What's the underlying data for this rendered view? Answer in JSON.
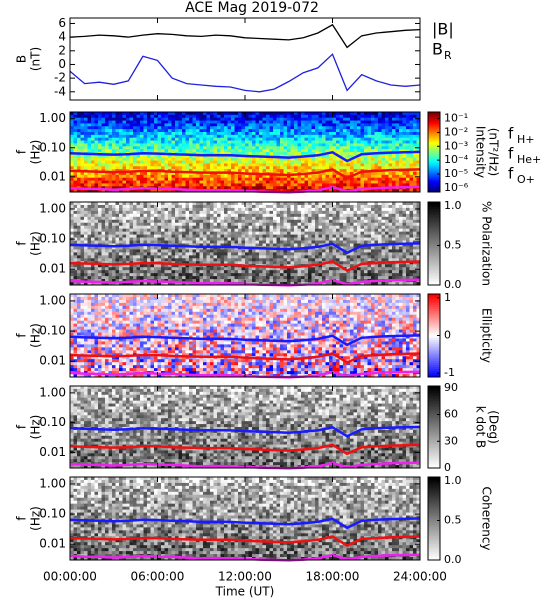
{
  "chart_data": [
    {
      "type": "line",
      "title": "ACE Mag 2019-072",
      "y_label": "B",
      "y_unit": "(nT)",
      "xlim": [
        0,
        24
      ],
      "x": [
        0,
        1,
        2,
        3,
        4,
        5,
        6,
        7,
        8,
        9,
        10,
        11,
        12,
        13,
        14,
        15,
        16,
        17,
        18,
        19,
        20,
        21,
        22,
        23,
        24
      ],
      "ylim": [
        -5.2,
        6.8
      ],
      "yticks": [
        6,
        4,
        2,
        0,
        -2,
        -4
      ],
      "series": [
        {
          "name": "|B|",
          "color": "#000000",
          "values": [
            4.0,
            4.1,
            4.3,
            4.2,
            4.0,
            4.3,
            4.5,
            4.4,
            4.2,
            4.1,
            4.3,
            4.2,
            3.9,
            3.8,
            3.7,
            3.6,
            3.9,
            4.6,
            5.8,
            2.5,
            4.2,
            4.6,
            4.8,
            5.0,
            5.1
          ]
        },
        {
          "name": "B",
          "subscript": "R",
          "color": "#2020e0",
          "values": [
            -1.0,
            -2.8,
            -2.6,
            -2.9,
            -2.4,
            1.2,
            0.6,
            -2.0,
            -2.8,
            -3.0,
            -3.2,
            -3.3,
            -3.8,
            -4.0,
            -3.6,
            -2.5,
            -1.2,
            -0.5,
            1.5,
            -3.8,
            -1.5,
            -2.4,
            -3.0,
            -3.2,
            -3.0
          ]
        }
      ]
    },
    {
      "type": "spectrogram",
      "y_label": "f",
      "y_unit": "(Hz)",
      "xlim": [
        0,
        24
      ],
      "ylim": [
        0.003,
        1.7
      ],
      "log_y": true,
      "yticks": [
        {
          "value": 1,
          "label": "1.00"
        },
        {
          "value": 0.1,
          "label": "0.10"
        },
        0.01
      ],
      "colormap": "jet",
      "colorbar_label": "Intensity",
      "colorbar_unit": "(nT²/Hz)",
      "clim": [
        5e-07,
        0.3
      ],
      "log_c": true,
      "cticks": [
        {
          "value": 0.1,
          "label": "10⁻¹"
        },
        {
          "value": 0.01,
          "label": "10⁻²"
        },
        {
          "value": 0.001,
          "label": "10⁻³"
        },
        {
          "value": 0.0001,
          "label": "10⁻⁴"
        },
        {
          "value": 1e-05,
          "label": "10⁻⁵"
        },
        {
          "value": 1e-06,
          "label": "10⁻⁶"
        }
      ],
      "x": [
        0,
        1,
        2,
        3,
        4,
        5,
        6,
        7,
        8,
        9,
        10,
        11,
        12,
        13,
        14,
        15,
        16,
        17,
        18,
        19,
        20,
        21,
        22,
        23,
        24
      ],
      "series": [
        {
          "name": "f",
          "subscript": "H+",
          "color": "#1a1aff",
          "values": [
            0.065,
            0.062,
            0.06,
            0.058,
            0.06,
            0.065,
            0.063,
            0.06,
            0.058,
            0.055,
            0.056,
            0.055,
            0.052,
            0.05,
            0.048,
            0.046,
            0.05,
            0.055,
            0.07,
            0.035,
            0.06,
            0.065,
            0.068,
            0.07,
            0.072
          ]
        },
        {
          "name": "f",
          "subscript": "He+",
          "color": "#ee1111",
          "values": [
            0.016,
            0.0155,
            0.015,
            0.0145,
            0.015,
            0.016,
            0.016,
            0.015,
            0.0145,
            0.014,
            0.014,
            0.014,
            0.013,
            0.0125,
            0.012,
            0.0115,
            0.0125,
            0.014,
            0.018,
            0.009,
            0.015,
            0.016,
            0.017,
            0.0175,
            0.018
          ]
        },
        {
          "name": "f",
          "subscript": "O+",
          "color": "#ee22ee",
          "values": [
            0.0041,
            0.0039,
            0.0038,
            0.0036,
            0.0038,
            0.0041,
            0.0039,
            0.0038,
            0.0036,
            0.0034,
            0.0035,
            0.0034,
            0.0033,
            0.0031,
            0.003,
            0.0029,
            0.0031,
            0.0034,
            0.0044,
            0.0032,
            0.0038,
            0.0041,
            0.0043,
            0.0044,
            0.0045
          ]
        }
      ]
    },
    {
      "type": "spectrogram",
      "y_label": "f",
      "y_unit": "(Hz)",
      "xlim": [
        0,
        24
      ],
      "ylim": [
        0.003,
        1.7
      ],
      "log_y": true,
      "yticks": [
        {
          "value": 1,
          "label": "1.00"
        },
        {
          "value": 0.1,
          "label": "0.10"
        },
        0.01
      ],
      "colormap": "gray",
      "colorbar_label": "% Polarization",
      "clim": [
        0,
        1.05
      ],
      "cticks": [
        {
          "value": 0,
          "label": "0.0"
        },
        0.5,
        {
          "value": 1,
          "label": "1.0"
        }
      ]
    },
    {
      "type": "spectrogram",
      "y_label": "f",
      "y_unit": "(Hz)",
      "xlim": [
        0,
        24
      ],
      "ylim": [
        0.003,
        1.7
      ],
      "log_y": true,
      "yticks": [
        {
          "value": 1,
          "label": "1.00"
        },
        {
          "value": 0.1,
          "label": "0.10"
        },
        0.01
      ],
      "colormap": "bwr",
      "colorbar_label": "Ellipticity",
      "clim": [
        -1.1,
        1.1
      ],
      "cticks": [
        -1,
        0,
        1
      ]
    },
    {
      "type": "spectrogram",
      "y_label": "f",
      "y_unit": "(Hz)",
      "xlim": [
        0,
        24
      ],
      "ylim": [
        0.003,
        1.7
      ],
      "log_y": true,
      "yticks": [
        {
          "value": 1,
          "label": "1.00"
        },
        {
          "value": 0.1,
          "label": "0.10"
        },
        0.01
      ],
      "colormap": "gray",
      "colorbar_label": "k dot B",
      "colorbar_unit": "(Deg)",
      "clim": [
        0,
        92
      ],
      "cticks": [
        0,
        30,
        60,
        90
      ]
    },
    {
      "type": "spectrogram",
      "y_label": "f",
      "y_unit": "(Hz)",
      "xlim": [
        0,
        24
      ],
      "ylim": [
        0.003,
        1.7
      ],
      "log_y": true,
      "yticks": [
        {
          "value": 1,
          "label": "1.00"
        },
        {
          "value": 0.1,
          "label": "0.10"
        },
        0.01
      ],
      "colormap": "gray",
      "colorbar_label": "Coherency",
      "clim": [
        0,
        1.05
      ],
      "cticks": [
        {
          "value": 0,
          "label": "0.0"
        },
        0.5,
        {
          "value": 1,
          "label": "1.0"
        }
      ],
      "x_label": "Time (UT)",
      "xticks": [
        {
          "value": 0,
          "label": "00:00:00"
        },
        {
          "value": 6,
          "label": "06:00:00"
        },
        {
          "value": 12,
          "label": "12:00:00"
        },
        {
          "value": 18,
          "label": "18:00:00"
        },
        {
          "value": 24,
          "label": "24:00:00"
        }
      ]
    }
  ]
}
